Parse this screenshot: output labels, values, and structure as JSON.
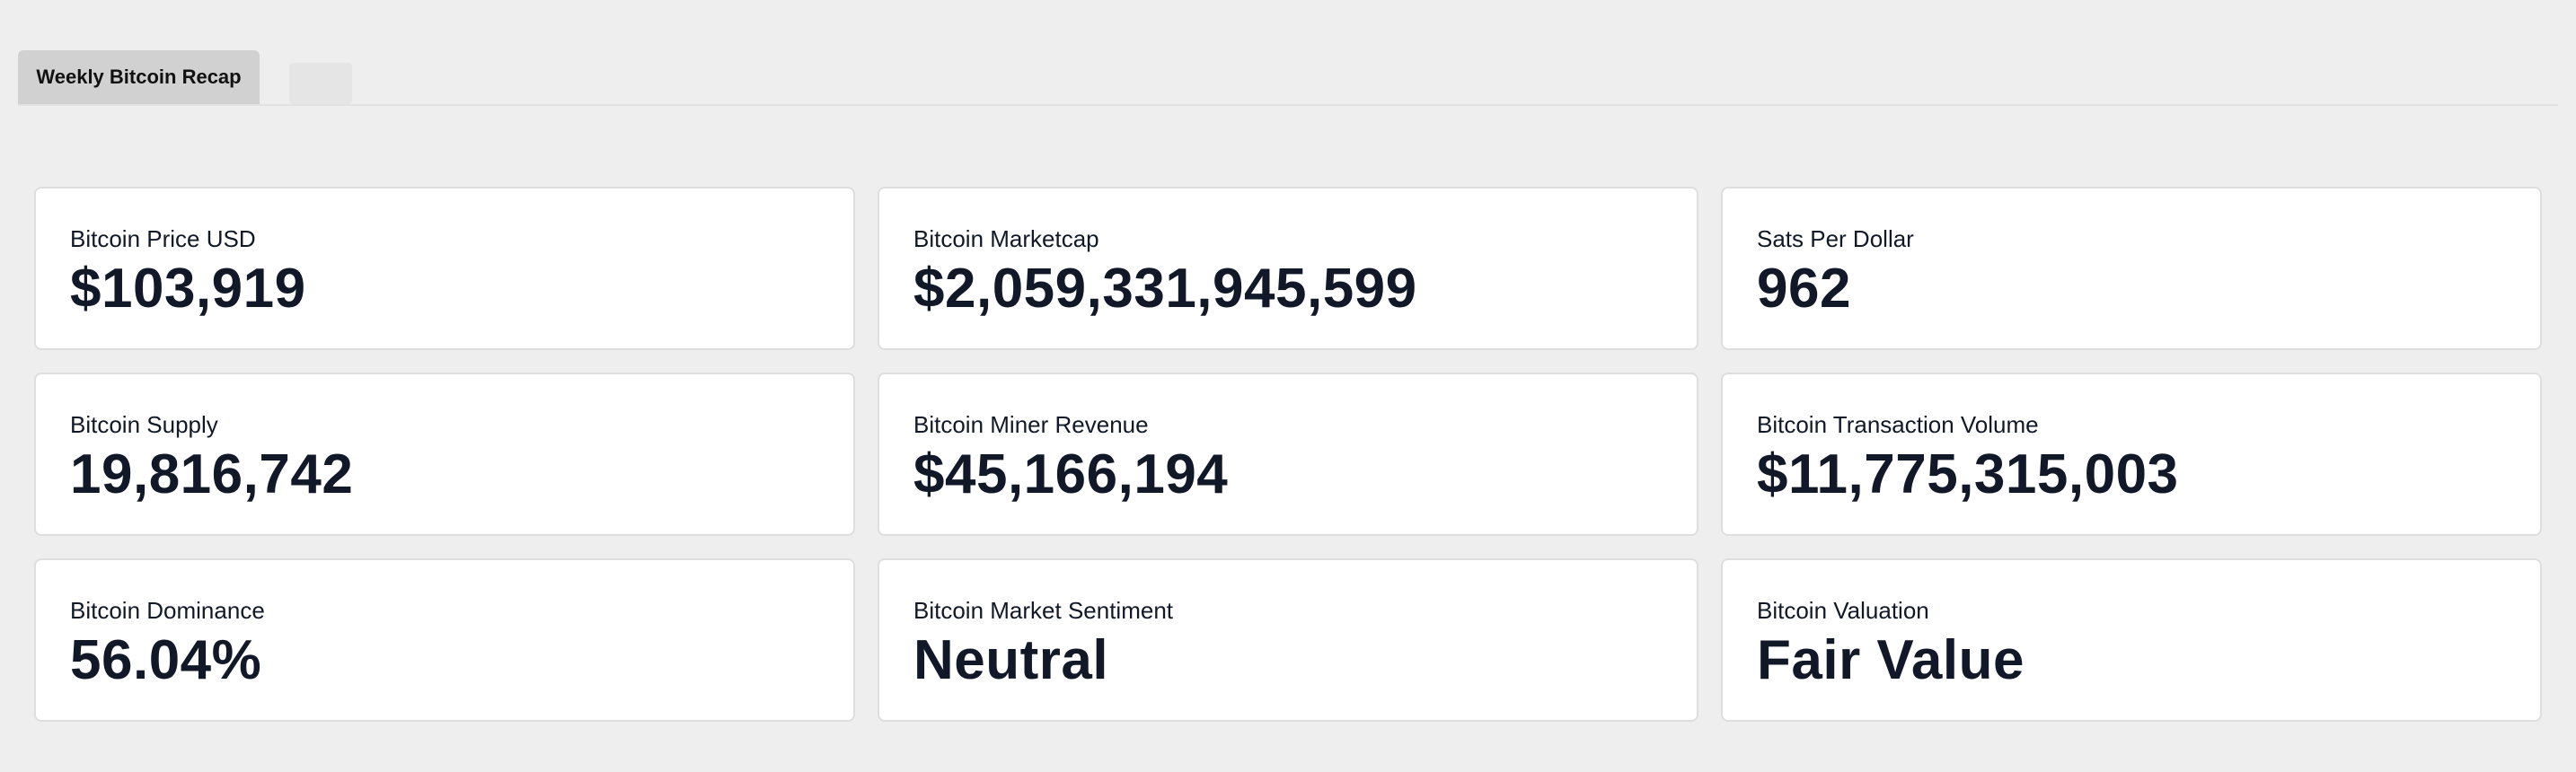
{
  "tabs": [
    {
      "label": "Weekly Bitcoin Recap",
      "active": true
    }
  ],
  "metrics": [
    {
      "label": "Bitcoin Price USD",
      "value": "$103,919"
    },
    {
      "label": "Bitcoin Marketcap",
      "value": "$2,059,331,945,599"
    },
    {
      "label": "Sats Per Dollar",
      "value": "962"
    },
    {
      "label": "Bitcoin Supply",
      "value": "19,816,742"
    },
    {
      "label": "Bitcoin Miner Revenue",
      "value": "$45,166,194"
    },
    {
      "label": "Bitcoin Transaction Volume",
      "value": "$11,775,315,003"
    },
    {
      "label": "Bitcoin Dominance",
      "value": "56.04%"
    },
    {
      "label": "Bitcoin Market Sentiment",
      "value": "Neutral"
    },
    {
      "label": "Bitcoin Valuation",
      "value": "Fair Value"
    }
  ],
  "colors": {
    "background": "#eeeeee",
    "card": "#ffffff",
    "text": "#111827",
    "active_tab": "#d1d1d1"
  }
}
